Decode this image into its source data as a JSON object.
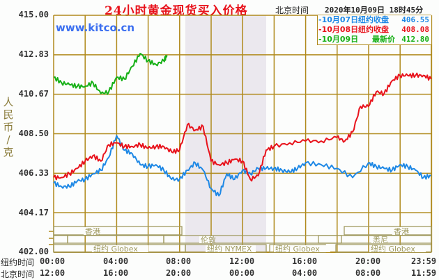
{
  "header": {
    "title": "24小时黄金现货买入价格",
    "timezone_label": "北京时间",
    "datetime": "2020年10月09日 18时45分",
    "site": "www.kitco.cn"
  },
  "legend": [
    {
      "date": "-10月07日",
      "name": "纽约收盘",
      "value": "406.55",
      "color": "#1e88e5"
    },
    {
      "date": "-10月08日",
      "name": "纽约收盘",
      "value": "408.08",
      "color": "#e8121b"
    },
    {
      "date": "-10月09日",
      "name": "最新价",
      "value": "412.80",
      "color": "#16b016"
    }
  ],
  "y_axis": {
    "label": "人民币/克",
    "ticks": [
      "415.00",
      "412.83",
      "410.67",
      "408.50",
      "406.33",
      "404.17",
      "402.00"
    ]
  },
  "x_axis": {
    "ny_label": "纽约时间",
    "bj_label": "北京时间",
    "ny_ticks": [
      "00:00",
      "04:00",
      "08:00",
      "12:00",
      "16:00",
      "20:00",
      "23:59"
    ],
    "bj_ticks": [
      "12:00",
      "16:00",
      "20:00",
      "00:00",
      "04:00",
      "08:00",
      "11:59"
    ]
  },
  "sessions": {
    "hk1": "香港",
    "london": "伦敦",
    "globex1": "纽约 Globex",
    "nymex": "纽约 NYMEX",
    "globex2": "纽约 Globex",
    "sydney": "悉尼",
    "hk2": "香港",
    "globex3": "纽约 Globex"
  },
  "colors": {
    "grid": "#b08a1c",
    "session": "#a09a60",
    "shade": "#ebe8ee",
    "red": "#e8121b",
    "blue": "#1e88e5",
    "green": "#16b016"
  },
  "chart_data": {
    "type": "line",
    "title": "24小时黄金现货买入价格",
    "xlabel": "纽约时间 / 北京时间",
    "ylabel": "人民币/克",
    "ylim": [
      402.0,
      415.0
    ],
    "xlim_hours_ny": [
      0,
      24
    ],
    "grid": true,
    "legend_position": "top-right",
    "series": [
      {
        "name": "10月07日 纽约收盘 406.55",
        "color": "#1e88e5",
        "x_hours_ny": [
          0,
          0.5,
          1,
          1.5,
          2,
          2.5,
          3,
          3.5,
          4,
          4.5,
          5,
          5.5,
          6,
          6.5,
          7,
          7.5,
          8,
          8.5,
          9,
          9.5,
          10,
          10.5,
          11,
          11.5,
          12,
          12.5,
          13,
          13.5,
          14,
          14.5,
          15,
          15.5,
          16,
          17,
          18,
          19,
          20,
          20.5,
          21,
          21.5,
          22,
          22.5,
          23,
          23.5,
          23.99
        ],
        "values": [
          405.8,
          405.6,
          405.6,
          405.9,
          406.0,
          406.3,
          406.5,
          407.2,
          408.4,
          407.6,
          407.4,
          406.8,
          406.7,
          406.8,
          406.5,
          406.0,
          406.0,
          406.5,
          406.9,
          406.5,
          405.5,
          405.1,
          406.3,
          406.0,
          406.5,
          406.3,
          406.6,
          406.6,
          406.6,
          406.5,
          406.4,
          406.6,
          406.9,
          406.8,
          406.6,
          406.1,
          406.9,
          406.7,
          406.6,
          406.5,
          406.8,
          406.7,
          406.5,
          406.1,
          406.2
        ]
      },
      {
        "name": "10月08日 纽约收盘 408.08",
        "color": "#e8121b",
        "x_hours_ny": [
          0,
          0.5,
          1,
          1.5,
          2,
          2.5,
          3,
          3.5,
          4,
          4.5,
          5,
          5.5,
          6,
          6.5,
          7,
          7.5,
          8,
          8.5,
          9,
          9.5,
          10,
          10.5,
          11,
          11.5,
          12,
          12.5,
          13,
          13.5,
          14,
          15,
          16,
          17,
          18,
          18.5,
          19,
          19.5,
          20,
          20.5,
          21,
          21.5,
          22,
          22.5,
          23,
          23.5,
          23.99
        ],
        "values": [
          406.1,
          406.1,
          406.3,
          406.6,
          407.0,
          407.3,
          407.0,
          407.9,
          408.0,
          407.8,
          407.8,
          407.9,
          407.7,
          407.8,
          407.8,
          407.5,
          407.6,
          409.0,
          408.7,
          408.9,
          407.0,
          406.8,
          406.9,
          407.1,
          407.0,
          406.0,
          406.2,
          407.6,
          407.8,
          408.0,
          408.1,
          408.1,
          408.3,
          408.1,
          408.6,
          410.0,
          410.0,
          410.8,
          410.7,
          411.4,
          411.7,
          411.7,
          411.7,
          411.7,
          411.5
        ]
      },
      {
        "name": "10月09日 最新价 412.80",
        "color": "#16b016",
        "x_hours_ny": [
          0,
          0.5,
          1,
          1.5,
          2,
          2.5,
          3,
          3.5,
          4,
          4.5,
          5,
          5.5,
          6,
          6.5,
          7,
          7.2
        ],
        "values": [
          411.6,
          411.3,
          411.2,
          411.1,
          411.1,
          411.3,
          410.7,
          410.8,
          411.6,
          411.5,
          412.2,
          412.9,
          412.5,
          412.3,
          412.5,
          412.8
        ]
      }
    ]
  }
}
